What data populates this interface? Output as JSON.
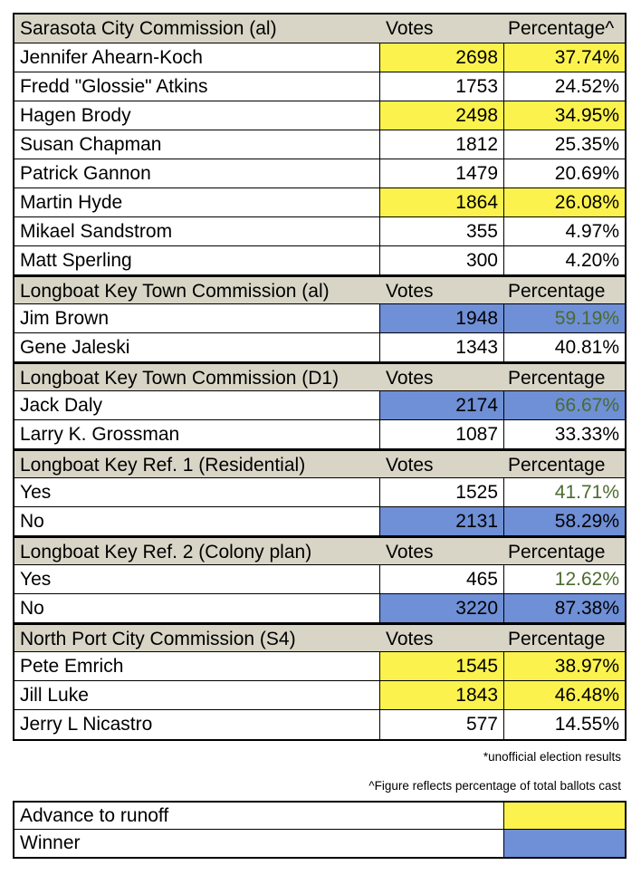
{
  "sections": [
    {
      "header": [
        "Sarasota City Commission (al)",
        "Votes",
        "Percentage^"
      ],
      "rows": [
        {
          "cells": [
            "Jennifer Ahearn-Koch",
            2698,
            "37.74%"
          ],
          "highlight": "#fbf24e"
        },
        {
          "cells": [
            "Fredd \"Glossie\" Atkins",
            1753,
            "24.52%"
          ]
        },
        {
          "cells": [
            "Hagen Brody",
            2498,
            "34.95%"
          ],
          "highlight": "#fbf24e"
        },
        {
          "cells": [
            "Susan Chapman",
            1812,
            "25.35%"
          ]
        },
        {
          "cells": [
            "Patrick Gannon",
            1479,
            "20.69%"
          ]
        },
        {
          "cells": [
            "Martin Hyde",
            1864,
            "26.08%"
          ],
          "highlight": "#fbf24e"
        },
        {
          "cells": [
            "Mikael Sandstrom",
            355,
            "4.97%"
          ]
        },
        {
          "cells": [
            "Matt Sperling",
            300,
            "4.20%"
          ]
        }
      ]
    },
    {
      "header": [
        "Longboat Key Town Commission (al)",
        "Votes",
        "Percentage"
      ],
      "rows": [
        {
          "cells": [
            "Jim Brown",
            1948,
            "59.19%"
          ],
          "highlight": "#6f8fd6",
          "percent_color": "#4a6b2f"
        },
        {
          "cells": [
            "Gene Jaleski",
            1343,
            "40.81%"
          ]
        }
      ]
    },
    {
      "header": [
        "Longboat Key Town Commission (D1)",
        "Votes",
        "Percentage"
      ],
      "rows": [
        {
          "cells": [
            "Jack Daly",
            2174,
            "66.67%"
          ],
          "highlight": "#6f8fd6",
          "percent_color": "#4a6b2f"
        },
        {
          "cells": [
            "Larry K. Grossman",
            1087,
            "33.33%"
          ]
        }
      ]
    },
    {
      "header": [
        "Longboat Key Ref. 1 (Residential)",
        "Votes",
        "Percentage"
      ],
      "rows": [
        {
          "cells": [
            "Yes",
            1525,
            "41.71%"
          ],
          "percent_color": "#4a6b2f"
        },
        {
          "cells": [
            "No",
            2131,
            "58.29%"
          ],
          "highlight": "#6f8fd6"
        }
      ]
    },
    {
      "header": [
        "Longboat Key Ref. 2 (Colony plan)",
        "Votes",
        "Percentage"
      ],
      "rows": [
        {
          "cells": [
            "Yes",
            465,
            "12.62%"
          ],
          "percent_color": "#4a6b2f"
        },
        {
          "cells": [
            "No",
            3220,
            "87.38%"
          ],
          "highlight": "#6f8fd6"
        }
      ]
    },
    {
      "header": [
        "North Port City Commission (S4)",
        "Votes",
        "Percentage"
      ],
      "rows": [
        {
          "cells": [
            "Pete Emrich",
            1545,
            "38.97%"
          ],
          "highlight": "#fbf24e"
        },
        {
          "cells": [
            "Jill Luke",
            1843,
            "46.48%"
          ],
          "highlight": "#fbf24e"
        },
        {
          "cells": [
            "Jerry L Nicastro",
            577,
            "14.55%"
          ]
        }
      ]
    }
  ],
  "notes": [
    "*unofficial election results",
    "^Figure reflects percentage of total ballots cast"
  ],
  "legend": [
    {
      "label": "Advance to runoff",
      "color": "#fbf24e"
    },
    {
      "label": "Winner",
      "color": "#6f8fd6"
    }
  ]
}
